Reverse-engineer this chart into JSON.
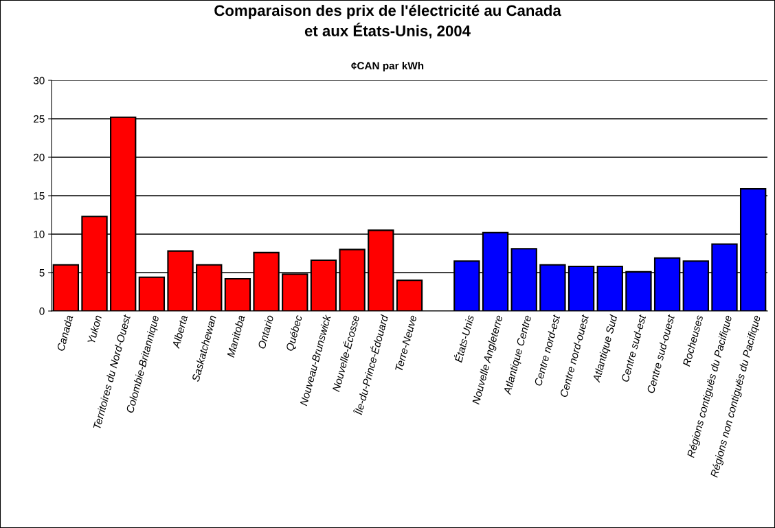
{
  "chart_data": {
    "type": "bar",
    "title": "Comparaison des prix de l'électricité au Canada\net aux États-Unis, 2004",
    "subtitle": "¢CAN par kWh",
    "categories": [
      "Canada",
      "Yukon",
      "Territoires du Nord-Ouest",
      "Colombie-Britannique",
      "Alberta",
      "Saskatchewan",
      "Manitoba",
      "Ontario",
      "Québec",
      "Nouveau-Brunswick",
      "Nouvelle-Écosse",
      "Île-du-Prince-Édouard",
      "Terre-Neuve",
      null,
      "États-Unis",
      "Nouvelle Angleterre",
      "Atlantique Centre",
      "Centre nord-est",
      "Centre nord-ouest",
      "Atlantique Sud",
      "Centre sud-est",
      "Centre sud-ouest",
      "Rocheuses",
      "Régions contiguës du Pacifique",
      "Régions non contiguës du Pacifique"
    ],
    "values": [
      6.0,
      12.3,
      25.2,
      4.4,
      7.8,
      6.0,
      4.2,
      7.6,
      4.8,
      6.6,
      8.0,
      10.5,
      4.0,
      null,
      6.5,
      10.2,
      8.1,
      6.0,
      5.8,
      5.8,
      5.1,
      6.9,
      6.5,
      8.7,
      15.9
    ],
    "colors": [
      "#ff0000",
      "#ff0000",
      "#ff0000",
      "#ff0000",
      "#ff0000",
      "#ff0000",
      "#ff0000",
      "#ff0000",
      "#ff0000",
      "#ff0000",
      "#ff0000",
      "#ff0000",
      "#ff0000",
      null,
      "#0000ff",
      "#0000ff",
      "#0000ff",
      "#0000ff",
      "#0000ff",
      "#0000ff",
      "#0000ff",
      "#0000ff",
      "#0000ff",
      "#0000ff",
      "#0000ff"
    ],
    "ylim": [
      0,
      30
    ],
    "yticks": [
      0,
      5,
      10,
      15,
      20,
      25,
      30
    ],
    "grid": "y"
  }
}
